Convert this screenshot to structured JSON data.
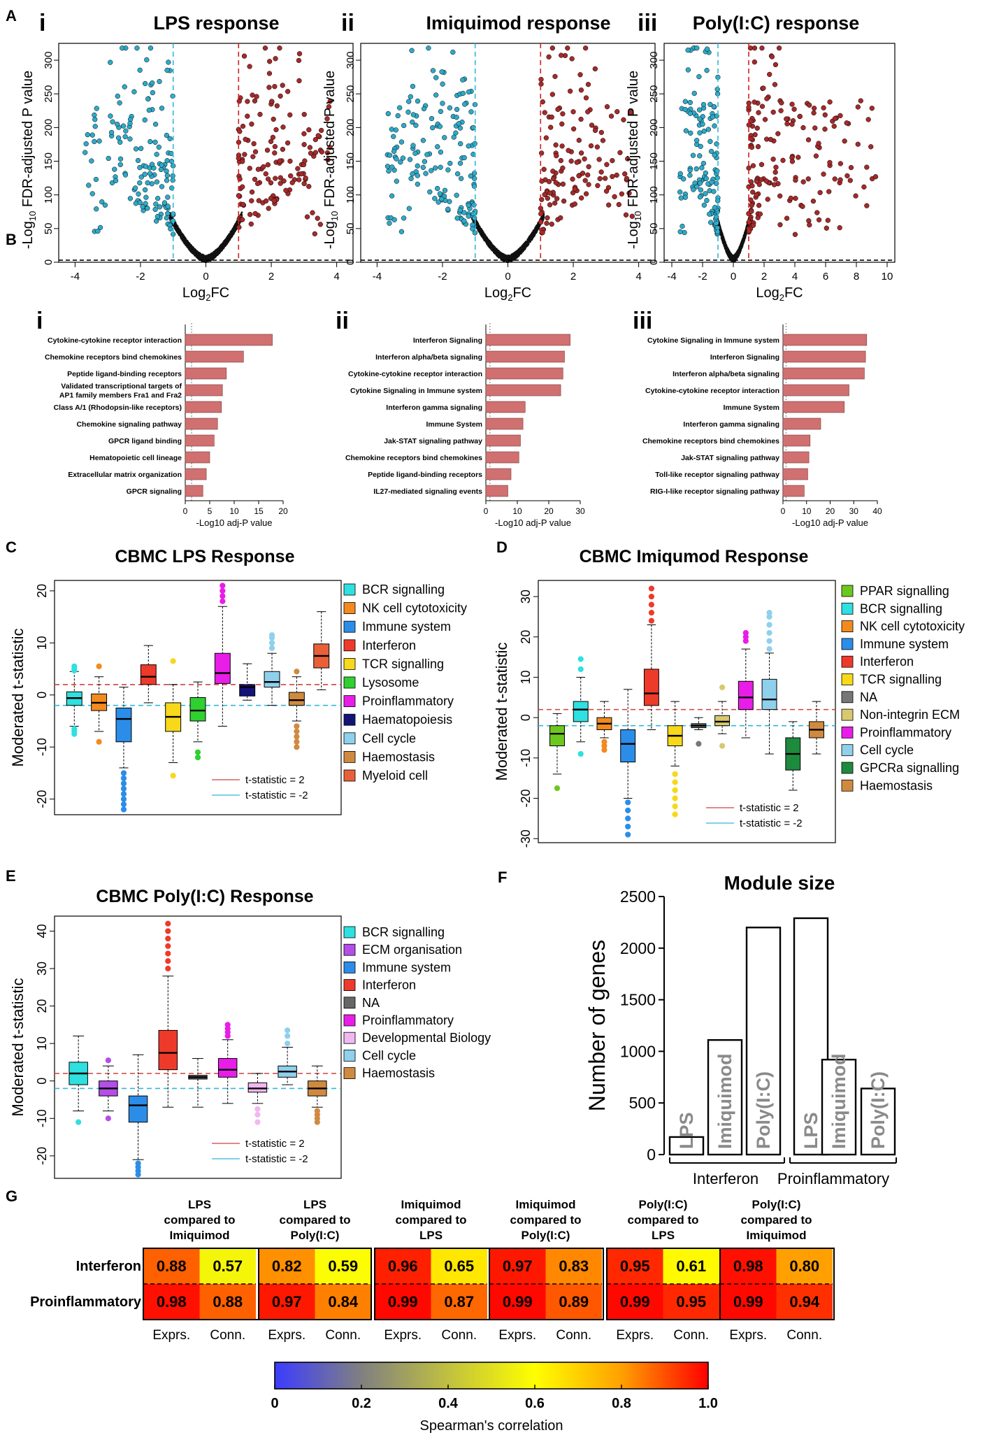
{
  "panel_letters": {
    "A": "A",
    "B": "B",
    "C": "C",
    "D": "D",
    "E": "E",
    "F": "F",
    "G": "G"
  },
  "sub_letters": [
    "i",
    "ii",
    "iii"
  ],
  "colors": {
    "up": "#a52a2a",
    "down": "#2eaac8",
    "ns": "#111111",
    "bar": "#d07070",
    "pos_line": "#d04040",
    "neg_line": "#30b8d8"
  },
  "chart_data": [
    {
      "id": "A",
      "type": "scatter",
      "subtitle": "volcano plots",
      "ylabel": "-Log10 FDR-adjusted P value",
      "xlabel": "Log2FC",
      "fc_threshold": [
        -1,
        1
      ],
      "panels": [
        {
          "title": "LPS response",
          "xlim": [
            -4.5,
            4.5
          ],
          "xticks": [
            -4,
            -2,
            0,
            2,
            4
          ],
          "ylim": [
            0,
            325
          ],
          "yticks": [
            0,
            50,
            100,
            150,
            200,
            250,
            300
          ],
          "xmax_data": 3.8
        },
        {
          "title": "Imiquimod response",
          "xlim": [
            -4.5,
            4.5
          ],
          "xticks": [
            -4,
            -2,
            0,
            2,
            4
          ],
          "ylim": [
            0,
            325
          ],
          "yticks": [
            0,
            50,
            100,
            150,
            200,
            250,
            300
          ],
          "xmax_data": 3.9
        },
        {
          "title": "Poly(I:C) response",
          "xlim": [
            -4.5,
            10.5
          ],
          "xticks": [
            -4,
            -2,
            0,
            2,
            4,
            6,
            8,
            10
          ],
          "ylim": [
            0,
            325
          ],
          "yticks": [
            0,
            50,
            100,
            150,
            200,
            250,
            300
          ],
          "xmax_data": 9.6
        }
      ]
    },
    {
      "id": "B",
      "type": "bar",
      "orientation": "horizontal",
      "panels": [
        {
          "xlabel": "-Log10 adj-P value",
          "xlim": [
            0,
            20
          ],
          "xticks": [
            0,
            5,
            10,
            15,
            20
          ],
          "categories": [
            "Cytokine-cytokine receptor interaction",
            "Chemokine receptors bind chemokines",
            "Peptide ligand-binding receptors",
            "Validated transcriptional targets of\nAP1 family members Fra1 and Fra2",
            "Class A/1 (Rhodopsin-like receptors)",
            "Chemokine signaling pathway",
            "GPCR ligand binding",
            "Hematopoietic cell lineage",
            "Extracellular matrix organization",
            "GPCR signaling"
          ],
          "values": [
            17.8,
            11.9,
            8.4,
            7.6,
            7.4,
            6.6,
            5.9,
            5.0,
            4.3,
            3.6
          ]
        },
        {
          "xlabel": "-Log10 adj-P value",
          "xlim": [
            0,
            30
          ],
          "xticks": [
            0,
            10,
            20,
            30
          ],
          "categories": [
            "Interferon Signaling",
            "Interferon alpha/beta signaling",
            "Cytokine-cytokine receptor interaction",
            "Cytokine Signaling in Immune system",
            "Interferon gamma signaling",
            "Immune System",
            "Jak-STAT signaling pathway",
            "Chemokine receptors bind chemokines",
            "Peptide ligand-binding receptors",
            "IL27-mediated signaling events"
          ],
          "values": [
            26.8,
            25.0,
            24.5,
            23.8,
            12.5,
            11.8,
            11.0,
            10.5,
            8.0,
            7.0
          ]
        },
        {
          "xlabel": "-Log10 adj-P value",
          "xlim": [
            0,
            40
          ],
          "xticks": [
            0,
            10,
            20,
            30,
            40
          ],
          "categories": [
            "Cytokine Signaling in Immune system",
            "Interferon Signaling",
            "Interferon alpha/beta signaling",
            "Cytokine-cytokine receptor interaction",
            "Immune System",
            "Interferon gamma signaling",
            "Chemokine receptors bind chemokines",
            "Jak-STAT signaling pathway",
            "Toll-like receptor signaling pathway",
            "RIG-I-like receptor signaling pathway"
          ],
          "values": [
            35.5,
            35.0,
            34.5,
            28.0,
            26.0,
            16.0,
            11.5,
            11.0,
            10.5,
            9.0
          ]
        }
      ]
    },
    {
      "id": "C",
      "type": "box",
      "title": "CBMC LPS Response",
      "ylabel": "Moderated t-statistic",
      "ylim": [
        -23,
        22
      ],
      "yticks": [
        -20,
        -10,
        0,
        10,
        20
      ],
      "legend_lines": [
        "t-statistic = 2",
        "t-statistic = -2"
      ],
      "series": [
        {
          "name": "BCR signalling",
          "color": "#2fe0e0",
          "min": -6,
          "q1": -2,
          "med": -0.6,
          "q3": 0.6,
          "max": 4.5,
          "out": [
            5.5,
            5,
            4.7,
            -7,
            -7.5,
            -6.5
          ]
        },
        {
          "name": "NK cell cytotoxicity",
          "color": "#f28a1e",
          "min": -7,
          "q1": -3,
          "med": -1.5,
          "q3": 0.2,
          "max": 3.5,
          "out": [
            5.5,
            -9
          ]
        },
        {
          "name": "Immune system",
          "color": "#2b8de8",
          "min": -14,
          "q1": -9,
          "med": -4.6,
          "q3": -2.5,
          "max": 1.5,
          "out": [
            -15,
            -16,
            -17,
            -18,
            -19,
            -20,
            -21,
            -22
          ]
        },
        {
          "name": "Interferon",
          "color": "#ee3a2a",
          "min": -1.5,
          "q1": 2,
          "med": 3.5,
          "q3": 5.8,
          "max": 9.5,
          "out": []
        },
        {
          "name": "TCR signalling",
          "color": "#f7d81a",
          "min": -13,
          "q1": -7,
          "med": -4.2,
          "q3": -1.5,
          "max": 2,
          "out": [
            -15.5,
            6.5
          ]
        },
        {
          "name": "Lysosome",
          "color": "#2fd02f",
          "min": -9,
          "q1": -5,
          "med": -3,
          "q3": -0.5,
          "max": 2.5,
          "out": [
            -11,
            -12
          ]
        },
        {
          "name": "Proinflammatory",
          "color": "#e81ee8",
          "min": -6,
          "q1": 2.2,
          "med": 4.2,
          "q3": 8,
          "max": 17,
          "out": [
            18,
            19,
            20,
            21
          ]
        },
        {
          "name": "Haematopoiesis",
          "color": "#141478",
          "min": -1,
          "q1": -0.2,
          "med": 1.5,
          "q3": 2,
          "max": 6,
          "out": []
        },
        {
          "name": "Cell cycle",
          "color": "#8fd0ec",
          "min": -2,
          "q1": 1.5,
          "med": 2.5,
          "q3": 4.5,
          "max": 8,
          "out": [
            9,
            10,
            11,
            11.5
          ]
        },
        {
          "name": "Haemostasis",
          "color": "#d08a40",
          "min": -5,
          "q1": -2,
          "med": -1,
          "q3": 0.5,
          "max": 3.5,
          "out": [
            4.5,
            -6,
            -7,
            -8,
            -9,
            -10
          ]
        },
        {
          "name": "Myeloid cell",
          "color": "#e8603a",
          "min": 1,
          "q1": 5.2,
          "med": 7.5,
          "q3": 9.8,
          "max": 16,
          "out": []
        }
      ]
    },
    {
      "id": "D",
      "type": "box",
      "title": "CBMC Imiqumod Response",
      "ylabel": "Moderated t-statistic",
      "ylim": [
        -31,
        34
      ],
      "yticks": [
        -30,
        -20,
        -10,
        0,
        10,
        20,
        30
      ],
      "legend_lines": [
        "t-statistic = 2",
        "t-statistic = -2"
      ],
      "series": [
        {
          "name": "PPAR signalling",
          "color": "#6cc81e",
          "min": -14,
          "q1": -7,
          "med": -4,
          "q3": -2,
          "max": 1,
          "out": [
            -17.5
          ]
        },
        {
          "name": "BCR signalling",
          "color": "#2fe0e0",
          "min": -6,
          "q1": -1,
          "med": 2,
          "q3": 4,
          "max": 10,
          "out": [
            12,
            14.5,
            -9
          ]
        },
        {
          "name": "NK cell cytotoxicity",
          "color": "#f28a1e",
          "min": -5,
          "q1": -3,
          "med": -1.5,
          "q3": 0,
          "max": 4,
          "out": [
            -6,
            -7,
            -8
          ]
        },
        {
          "name": "Immune system",
          "color": "#2b8de8",
          "min": -20,
          "q1": -11,
          "med": -6.5,
          "q3": -3,
          "max": 7,
          "out": [
            -21,
            -23,
            -25,
            -27,
            -29
          ]
        },
        {
          "name": "Interferon",
          "color": "#ee3a2a",
          "min": -3,
          "q1": 3,
          "med": 6,
          "q3": 12,
          "max": 23,
          "out": [
            24,
            26,
            28,
            30,
            32
          ]
        },
        {
          "name": "TCR signalling",
          "color": "#f7d81a",
          "min": -12,
          "q1": -7,
          "med": -4.5,
          "q3": -2,
          "max": 4,
          "out": [
            -14,
            -16,
            -18,
            -20,
            -22,
            -24
          ]
        },
        {
          "name": "NA",
          "color": "#777777",
          "min": -3,
          "q1": -2.5,
          "med": -2,
          "q3": -1.5,
          "max": 0,
          "out": [
            -6.5
          ]
        },
        {
          "name": "Non-integrin ECM",
          "color": "#d8c870",
          "min": -4,
          "q1": -2,
          "med": -1,
          "q3": 0.5,
          "max": 4,
          "out": [
            7.5,
            -7
          ]
        },
        {
          "name": "Proinflammatory",
          "color": "#e81ee8",
          "min": -5,
          "q1": 2,
          "med": 5,
          "q3": 9,
          "max": 17,
          "out": [
            19,
            20,
            21
          ]
        },
        {
          "name": "Cell cycle",
          "color": "#8fd0ec",
          "min": -9,
          "q1": 2,
          "med": 4.5,
          "q3": 9.5,
          "max": 16,
          "out": [
            17,
            19,
            21,
            23,
            25,
            26
          ]
        },
        {
          "name": "GPCRa signalling",
          "color": "#1e8a3e",
          "min": -18,
          "q1": -13,
          "med": -9,
          "q3": -5,
          "max": -1,
          "out": []
        },
        {
          "name": "Haemostasis",
          "color": "#d08a40",
          "min": -9,
          "q1": -5,
          "med": -3,
          "q3": -1,
          "max": 4,
          "out": []
        }
      ]
    },
    {
      "id": "E",
      "type": "box",
      "title": "CBMC Poly(I:C) Response",
      "ylabel": "Moderated t-statistic",
      "ylim": [
        -26,
        44
      ],
      "yticks": [
        -20,
        -10,
        0,
        10,
        20,
        30,
        40
      ],
      "legend_lines": [
        "t-statistic = 2",
        "t-statistic = -2"
      ],
      "series": [
        {
          "name": "BCR signalling",
          "color": "#2fe0e0",
          "min": -8,
          "q1": -1,
          "med": 2,
          "q3": 5,
          "max": 12,
          "out": [
            -11
          ]
        },
        {
          "name": "ECM organisation",
          "color": "#b44ee8",
          "min": -8,
          "q1": -4,
          "med": -2,
          "q3": 0,
          "max": 4,
          "out": [
            5.5,
            -10
          ]
        },
        {
          "name": "Immune system",
          "color": "#2b8de8",
          "min": -21,
          "q1": -11,
          "med": -6.5,
          "q3": -4,
          "max": 7,
          "out": [
            -22,
            -23,
            -24,
            -25
          ]
        },
        {
          "name": "Interferon",
          "color": "#ee3a2a",
          "min": -7,
          "q1": 3,
          "med": 7.5,
          "q3": 13.5,
          "max": 28,
          "out": [
            30,
            32,
            34,
            36,
            38,
            40,
            42
          ]
        },
        {
          "name": "NA",
          "color": "#666666",
          "min": -7,
          "q1": 0.5,
          "med": 1,
          "q3": 1.5,
          "max": 6,
          "out": []
        },
        {
          "name": "Proinflammatory",
          "color": "#e81ee8",
          "min": -6,
          "q1": 1,
          "med": 3,
          "q3": 6,
          "max": 11,
          "out": [
            12,
            13,
            14,
            15
          ]
        },
        {
          "name": "Developmental Biology",
          "color": "#f0b8f0",
          "min": -6,
          "q1": -3,
          "med": -2,
          "q3": -0.5,
          "max": 2,
          "out": [
            -7.5,
            -9,
            -11
          ]
        },
        {
          "name": "Cell cycle",
          "color": "#8fd0ec",
          "min": -1,
          "q1": 1,
          "med": 2.5,
          "q3": 4,
          "max": 9,
          "out": [
            10,
            12,
            13.5
          ]
        },
        {
          "name": "Haemostasis",
          "color": "#d08a40",
          "min": -7,
          "q1": -4,
          "med": -2,
          "q3": 0,
          "max": 4,
          "out": [
            -8,
            -9,
            -10,
            -11
          ]
        }
      ]
    },
    {
      "id": "F",
      "type": "bar",
      "title": "Module size",
      "ylabel": "Number of genes",
      "ylim": [
        0,
        2500
      ],
      "yticks": [
        0,
        500,
        1000,
        1500,
        2000,
        2500
      ],
      "categories": [
        "LPS",
        "Imiquimod",
        "Poly(I:C)",
        "LPS",
        "Imiquimod",
        "Poly(I:C)"
      ],
      "values": [
        170,
        1110,
        2200,
        2290,
        920,
        640
      ],
      "groups": [
        "Interferon",
        "Proinflammatory"
      ]
    },
    {
      "id": "G",
      "type": "heatmap",
      "rows": [
        "Interferon",
        "Proinflammatory"
      ],
      "blocks": [
        {
          "title": [
            "LPS",
            "compared to",
            "Imiquimod"
          ],
          "values": [
            [
              0.88,
              0.57
            ],
            [
              0.98,
              0.88
            ]
          ]
        },
        {
          "title": [
            "LPS",
            "compared to",
            "Poly(I:C)"
          ],
          "values": [
            [
              0.82,
              0.59
            ],
            [
              0.97,
              0.84
            ]
          ]
        },
        {
          "title": [
            "Imiquimod",
            "compared to",
            "LPS"
          ],
          "values": [
            [
              0.96,
              0.65
            ],
            [
              0.99,
              0.87
            ]
          ]
        },
        {
          "title": [
            "Imiquimod",
            "compared to",
            "Poly(I:C)"
          ],
          "values": [
            [
              0.97,
              0.83
            ],
            [
              0.99,
              0.89
            ]
          ]
        },
        {
          "title": [
            "Poly(I:C)",
            "compared to",
            "LPS"
          ],
          "values": [
            [
              0.95,
              0.61
            ],
            [
              0.99,
              0.95
            ]
          ]
        },
        {
          "title": [
            "Poly(I:C)",
            "compared to",
            "Imiquimod"
          ],
          "values": [
            [
              0.98,
              0.8
            ],
            [
              0.99,
              0.94
            ]
          ]
        }
      ],
      "col_labels": [
        "Exprs.",
        "Conn."
      ],
      "colorbar_label": "Spearman's correlation",
      "colorbar_ticks": [
        "0",
        "0.2",
        "0.4",
        "0.6",
        "0.8",
        "1.0"
      ]
    }
  ]
}
